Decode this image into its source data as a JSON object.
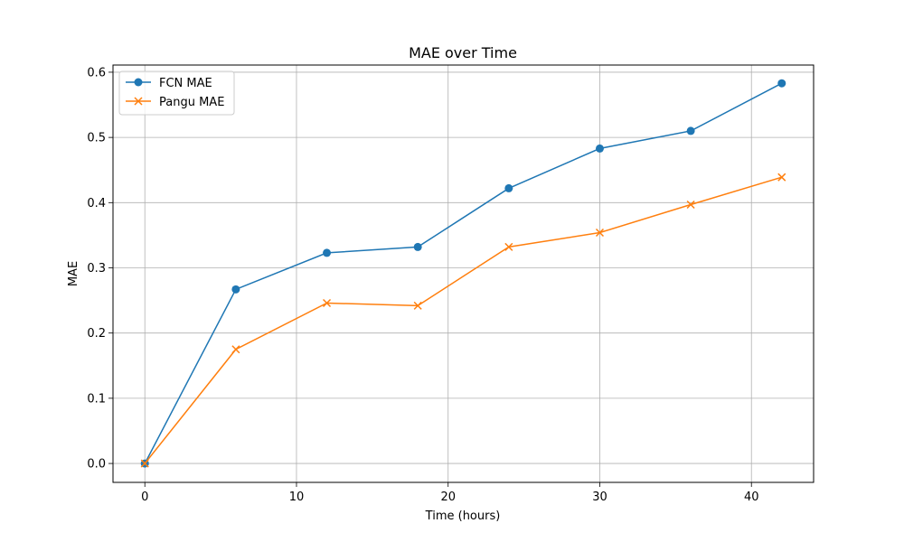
{
  "chart_data": {
    "type": "line",
    "title": "MAE over Time",
    "xlabel": "Time (hours)",
    "ylabel": "MAE",
    "x": [
      0,
      6,
      12,
      18,
      24,
      30,
      36,
      42
    ],
    "xlim": [
      -2.1,
      44.1
    ],
    "ylim": [
      -0.029,
      0.611
    ],
    "xticks": [
      0,
      10,
      20,
      30,
      40
    ],
    "yticks": [
      0.0,
      0.1,
      0.2,
      0.3,
      0.4,
      0.5,
      0.6
    ],
    "xtick_labels": [
      "0",
      "10",
      "20",
      "30",
      "40"
    ],
    "ytick_labels": [
      "0.0",
      "0.1",
      "0.2",
      "0.3",
      "0.4",
      "0.5",
      "0.6"
    ],
    "grid": true,
    "legend_position": "top-left",
    "series": [
      {
        "name": "FCN MAE",
        "color": "#1f77b4",
        "marker": "circle",
        "values": [
          0.0,
          0.267,
          0.323,
          0.332,
          0.422,
          0.483,
          0.51,
          0.583
        ]
      },
      {
        "name": "Pangu MAE",
        "color": "#ff7f0e",
        "marker": "x",
        "values": [
          0.0,
          0.175,
          0.246,
          0.242,
          0.332,
          0.354,
          0.397,
          0.439
        ]
      }
    ]
  }
}
